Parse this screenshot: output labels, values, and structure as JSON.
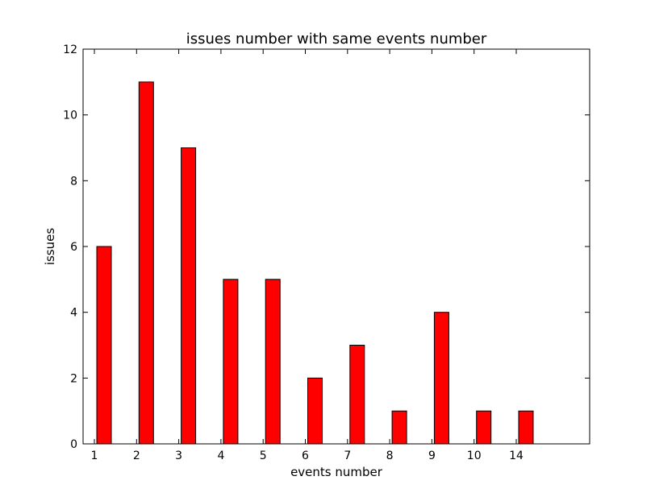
{
  "chart_data": {
    "type": "bar",
    "title": "issues number with same events number",
    "xlabel": "events number",
    "ylabel": "issues",
    "categories": [
      "1",
      "2",
      "3",
      "4",
      "5",
      "6",
      "7",
      "8",
      "9",
      "10",
      "14"
    ],
    "values": [
      6,
      11,
      9,
      5,
      5,
      2,
      3,
      1,
      4,
      1,
      1
    ],
    "ylim": [
      0,
      12
    ],
    "yticks": [
      "0",
      "2",
      "4",
      "6",
      "8",
      "10",
      "12"
    ],
    "grid": false,
    "legend": "none",
    "bar_color": "#ff0000",
    "edge_color": "#000000"
  }
}
